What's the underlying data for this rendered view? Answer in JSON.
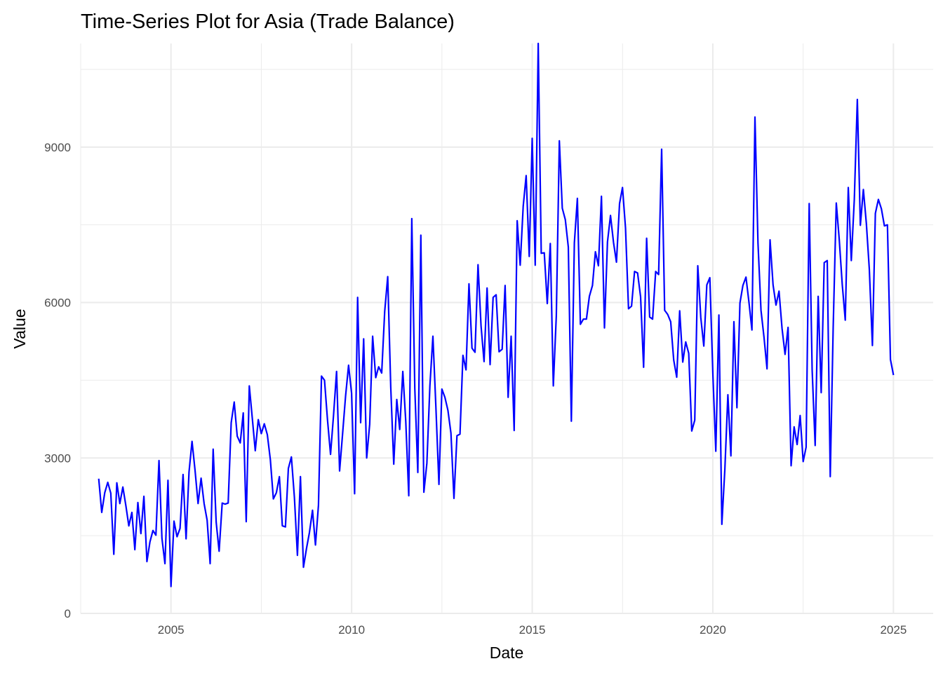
{
  "chart_data": {
    "type": "line",
    "title": "Time-Series Plot for Asia (Trade Balance)",
    "xlabel": "Date",
    "ylabel": "Value",
    "xlim": [
      2002.5,
      2026.1
    ],
    "ylim": [
      0,
      11000
    ],
    "x_ticks": [
      2005,
      2010,
      2015,
      2020,
      2025
    ],
    "x_tick_labels": [
      "2005",
      "2010",
      "2015",
      "2020",
      "2025"
    ],
    "y_ticks": [
      0,
      3000,
      6000,
      9000
    ],
    "y_tick_labels": [
      "0",
      "3000",
      "6000",
      "9000"
    ],
    "grid": true,
    "line_color": "#0000ff",
    "series": [
      {
        "name": "Asia (Trade Balance)",
        "x": [
          2003.0,
          2003.083,
          2003.167,
          2003.25,
          2003.333,
          2003.417,
          2003.5,
          2003.583,
          2003.667,
          2003.75,
          2003.833,
          2003.917,
          2004.0,
          2004.083,
          2004.167,
          2004.25,
          2004.333,
          2004.417,
          2004.5,
          2004.583,
          2004.667,
          2004.75,
          2004.833,
          2004.917,
          2005.0,
          2005.083,
          2005.167,
          2005.25,
          2005.333,
          2005.417,
          2005.5,
          2005.583,
          2005.667,
          2005.75,
          2005.833,
          2005.917,
          2006.0,
          2006.083,
          2006.167,
          2006.25,
          2006.333,
          2006.417,
          2006.5,
          2006.583,
          2006.667,
          2006.75,
          2006.833,
          2006.917,
          2007.0,
          2007.083,
          2007.167,
          2007.25,
          2007.333,
          2007.417,
          2007.5,
          2007.583,
          2007.667,
          2007.75,
          2007.833,
          2007.917,
          2008.0,
          2008.083,
          2008.167,
          2008.25,
          2008.333,
          2008.417,
          2008.5,
          2008.583,
          2008.667,
          2008.75,
          2008.833,
          2008.917,
          2009.0,
          2009.083,
          2009.167,
          2009.25,
          2009.333,
          2009.417,
          2009.5,
          2009.583,
          2009.667,
          2009.75,
          2009.833,
          2009.917,
          2010.0,
          2010.083,
          2010.167,
          2010.25,
          2010.333,
          2010.417,
          2010.5,
          2010.583,
          2010.667,
          2010.75,
          2010.833,
          2010.917,
          2011.0,
          2011.083,
          2011.167,
          2011.25,
          2011.333,
          2011.417,
          2011.5,
          2011.583,
          2011.667,
          2011.75,
          2011.833,
          2011.917,
          2012.0,
          2012.083,
          2012.167,
          2012.25,
          2012.333,
          2012.417,
          2012.5,
          2012.583,
          2012.667,
          2012.75,
          2012.833,
          2012.917,
          2013.0,
          2013.083,
          2013.167,
          2013.25,
          2013.333,
          2013.417,
          2013.5,
          2013.583,
          2013.667,
          2013.75,
          2013.833,
          2013.917,
          2014.0,
          2014.083,
          2014.167,
          2014.25,
          2014.333,
          2014.417,
          2014.5,
          2014.583,
          2014.667,
          2014.75,
          2014.833,
          2014.917,
          2015.0,
          2015.083,
          2015.167,
          2015.25,
          2015.333,
          2015.417,
          2015.5,
          2015.583,
          2015.667,
          2015.75,
          2015.833,
          2015.917,
          2016.0,
          2016.083,
          2016.167,
          2016.25,
          2016.333,
          2016.417,
          2016.5,
          2016.583,
          2016.667,
          2016.75,
          2016.833,
          2016.917,
          2017.0,
          2017.083,
          2017.167,
          2017.25,
          2017.333,
          2017.417,
          2017.5,
          2017.583,
          2017.667,
          2017.75,
          2017.833,
          2017.917,
          2018.0,
          2018.083,
          2018.167,
          2018.25,
          2018.333,
          2018.417,
          2018.5,
          2018.583,
          2018.667,
          2018.75,
          2018.833,
          2018.917,
          2019.0,
          2019.083,
          2019.167,
          2019.25,
          2019.333,
          2019.417,
          2019.5,
          2019.583,
          2019.667,
          2019.75,
          2019.833,
          2019.917,
          2020.0,
          2020.083,
          2020.167,
          2020.25,
          2020.333,
          2020.417,
          2020.5,
          2020.583,
          2020.667,
          2020.75,
          2020.833,
          2020.917,
          2021.0,
          2021.083,
          2021.167,
          2021.25,
          2021.333,
          2021.417,
          2021.5,
          2021.583,
          2021.667,
          2021.75,
          2021.833,
          2021.917,
          2022.0,
          2022.083,
          2022.167,
          2022.25,
          2022.333,
          2022.417,
          2022.5,
          2022.583,
          2022.667,
          2022.75,
          2022.833,
          2022.917,
          2023.0,
          2023.083,
          2023.167,
          2023.25,
          2023.333,
          2023.417,
          2023.5,
          2023.583,
          2023.667,
          2023.75,
          2023.833,
          2023.917,
          2024.0,
          2024.083,
          2024.167,
          2024.25,
          2024.333,
          2024.417,
          2024.5,
          2024.583,
          2024.667,
          2024.75,
          2024.833,
          2024.917,
          2025.0
        ],
        "values": [
          2600,
          1950,
          2330,
          2530,
          2320,
          1140,
          2520,
          2120,
          2440,
          2080,
          1690,
          1950,
          1230,
          2140,
          1540,
          2260,
          1000,
          1380,
          1600,
          1510,
          2950,
          1450,
          960,
          2570,
          520,
          1780,
          1480,
          1640,
          2680,
          1440,
          2730,
          3320,
          2760,
          2120,
          2610,
          2120,
          1800,
          960,
          3170,
          1760,
          1200,
          2130,
          2110,
          2130,
          3680,
          4080,
          3420,
          3290,
          3870,
          1770,
          4390,
          3780,
          3140,
          3740,
          3470,
          3660,
          3450,
          2970,
          2210,
          2330,
          2640,
          1690,
          1670,
          2800,
          3020,
          2240,
          1120,
          2640,
          890,
          1250,
          1560,
          1990,
          1320,
          2090,
          4580,
          4500,
          3730,
          3070,
          3830,
          4670,
          2750,
          3470,
          4190,
          4790,
          4250,
          2310,
          6100,
          3680,
          5300,
          3000,
          3650,
          5350,
          4550,
          4760,
          4640,
          5830,
          6500,
          4370,
          2880,
          4130,
          3550,
          4670,
          3710,
          2270,
          7620,
          4340,
          2720,
          7300,
          2340,
          2900,
          4390,
          5350,
          4000,
          2490,
          4330,
          4170,
          3920,
          3480,
          2220,
          3430,
          3460,
          4980,
          4700,
          6360,
          5120,
          5040,
          6730,
          5550,
          4860,
          6280,
          4800,
          6100,
          6150,
          5050,
          5100,
          6330,
          4170,
          5350,
          3530,
          7580,
          6720,
          7860,
          8450,
          6890,
          9170,
          6720,
          11000,
          6950,
          6960,
          5980,
          7140,
          4390,
          5750,
          9120,
          7820,
          7600,
          7070,
          3710,
          7150,
          8010,
          5580,
          5680,
          5680,
          6120,
          6330,
          6980,
          6710,
          8050,
          5510,
          7170,
          7680,
          7160,
          6780,
          7910,
          8220,
          7440,
          5880,
          5930,
          6600,
          6570,
          6110,
          4750,
          7240,
          5720,
          5680,
          6600,
          6540,
          8960,
          5850,
          5770,
          5630,
          4890,
          4560,
          5840,
          4850,
          5240,
          5020,
          3520,
          3730,
          6710,
          5710,
          5160,
          6340,
          6480,
          4620,
          3130,
          5760,
          1720,
          2780,
          4220,
          3040,
          5630,
          3970,
          5990,
          6330,
          6490,
          6010,
          5470,
          9580,
          7150,
          5850,
          5330,
          4720,
          7210,
          6340,
          5950,
          6220,
          5500,
          5000,
          5520,
          2850,
          3600,
          3260,
          3820,
          2930,
          3210,
          7910,
          4700,
          3240,
          6120,
          4260,
          6770,
          6810,
          2640,
          5530,
          7920,
          7220,
          6350,
          5660,
          8220,
          6810,
          7990,
          9920,
          7490,
          8180,
          7520,
          6640,
          5170,
          7720,
          7990,
          7810,
          7480,
          7500,
          4900,
          4600
        ]
      }
    ]
  }
}
